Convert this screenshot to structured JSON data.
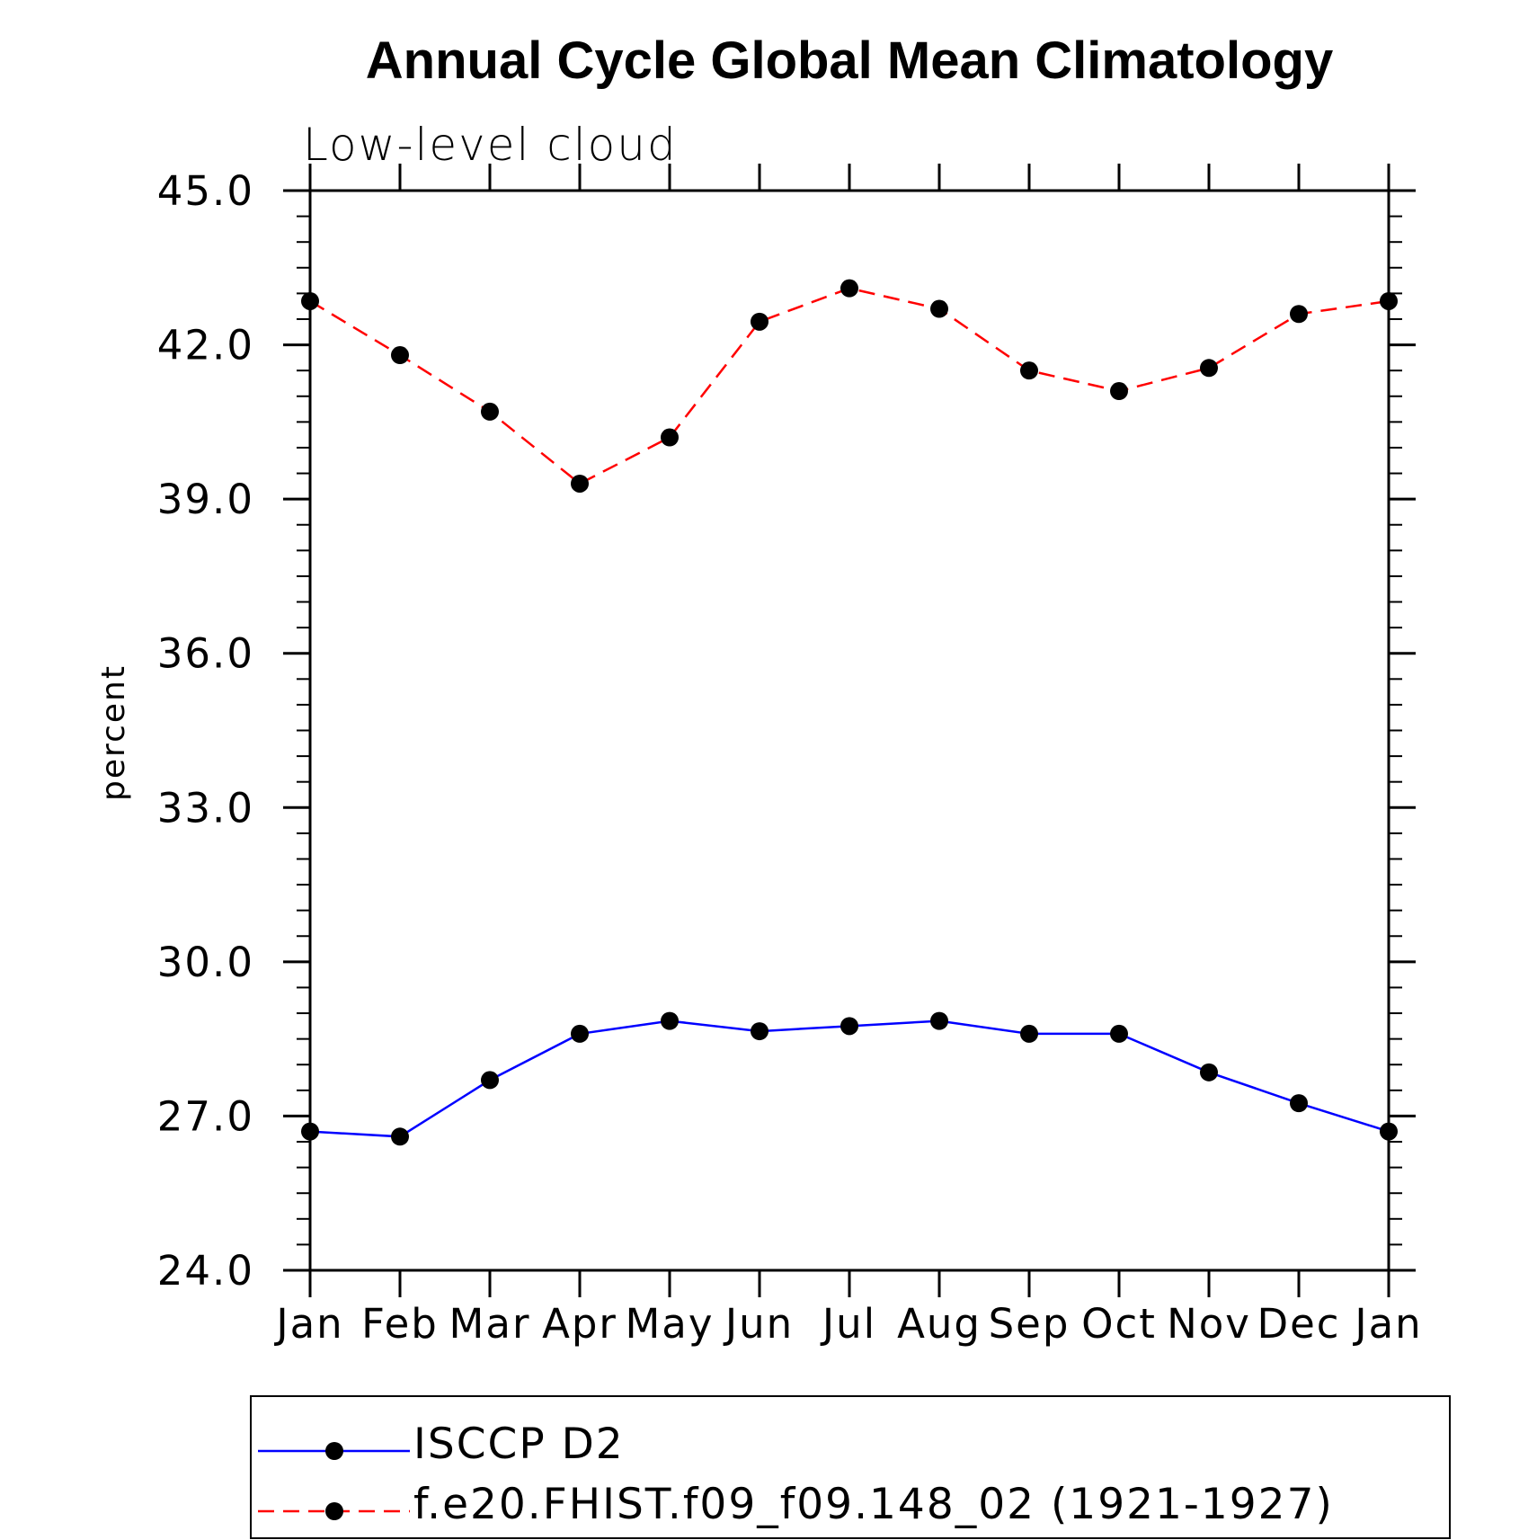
{
  "chart_data": {
    "type": "line",
    "title": "Annual Cycle Global Mean Climatology",
    "subtitle": "Low-level cloud",
    "ylabel": "percent",
    "xlabel": "",
    "ylim": [
      24,
      45
    ],
    "yticks": [
      "24.0",
      "27.0",
      "30.0",
      "33.0",
      "36.0",
      "39.0",
      "42.0",
      "45.0"
    ],
    "categories": [
      "Jan",
      "Feb",
      "Mar",
      "Apr",
      "May",
      "Jun",
      "Jul",
      "Aug",
      "Sep",
      "Oct",
      "Nov",
      "Dec",
      "Jan"
    ],
    "grid": false,
    "legend_position": "bottom",
    "series": [
      {
        "name": "ISCCP D2",
        "color": "#0000ff",
        "dash": "solid",
        "marker": "filled-circle",
        "values": [
          26.7,
          26.6,
          27.7,
          28.6,
          28.85,
          28.65,
          28.75,
          28.85,
          28.6,
          28.6,
          27.85,
          27.25,
          26.7
        ]
      },
      {
        "name": "f.e20.FHIST.f09_f09.148_02 (1921-1927)",
        "color": "#ff0000",
        "dash": "dashed",
        "marker": "filled-circle",
        "values": [
          42.85,
          41.8,
          40.7,
          39.3,
          40.2,
          42.45,
          43.1,
          42.7,
          41.5,
          41.1,
          41.55,
          42.6,
          42.85
        ]
      }
    ]
  }
}
